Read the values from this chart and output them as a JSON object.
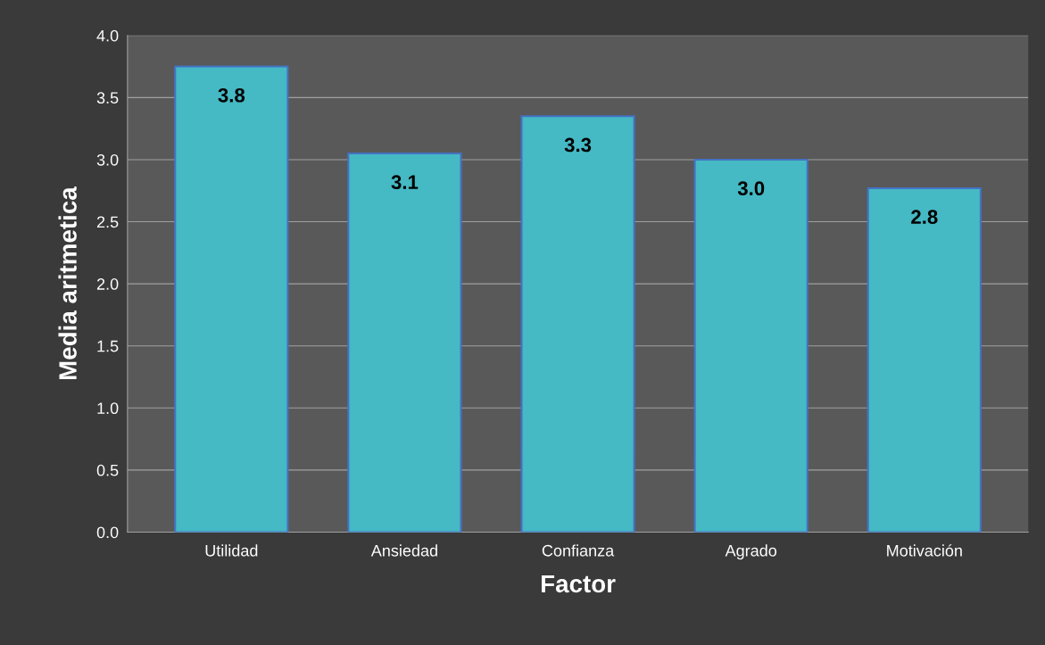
{
  "chart_data": {
    "type": "bar",
    "categories": [
      "Utilidad",
      "Ansiedad",
      "Confianza",
      "Agrado",
      "Motivación"
    ],
    "values": [
      3.75,
      3.05,
      3.35,
      3.0,
      2.77
    ],
    "value_labels": [
      "3.8",
      "3.1",
      "3.3",
      "3.0",
      "2.8"
    ],
    "color": "#45b9c4",
    "xlabel": "Factor",
    "ylabel": "Media aritmetica",
    "ylim": [
      0,
      4
    ],
    "yticks": [
      {
        "value": 0,
        "label": "0.0"
      },
      {
        "value": 0.5,
        "label": "0.5"
      },
      {
        "value": 1,
        "label": "1.0"
      },
      {
        "value": 1.5,
        "label": "1.5"
      },
      {
        "value": 2,
        "label": "2.0"
      },
      {
        "value": 2.5,
        "label": "2.5"
      },
      {
        "value": 3,
        "label": "3.0"
      },
      {
        "value": 3.5,
        "label": "3.5"
      },
      {
        "value": 4,
        "label": "4.0"
      }
    ],
    "grid": "y"
  }
}
